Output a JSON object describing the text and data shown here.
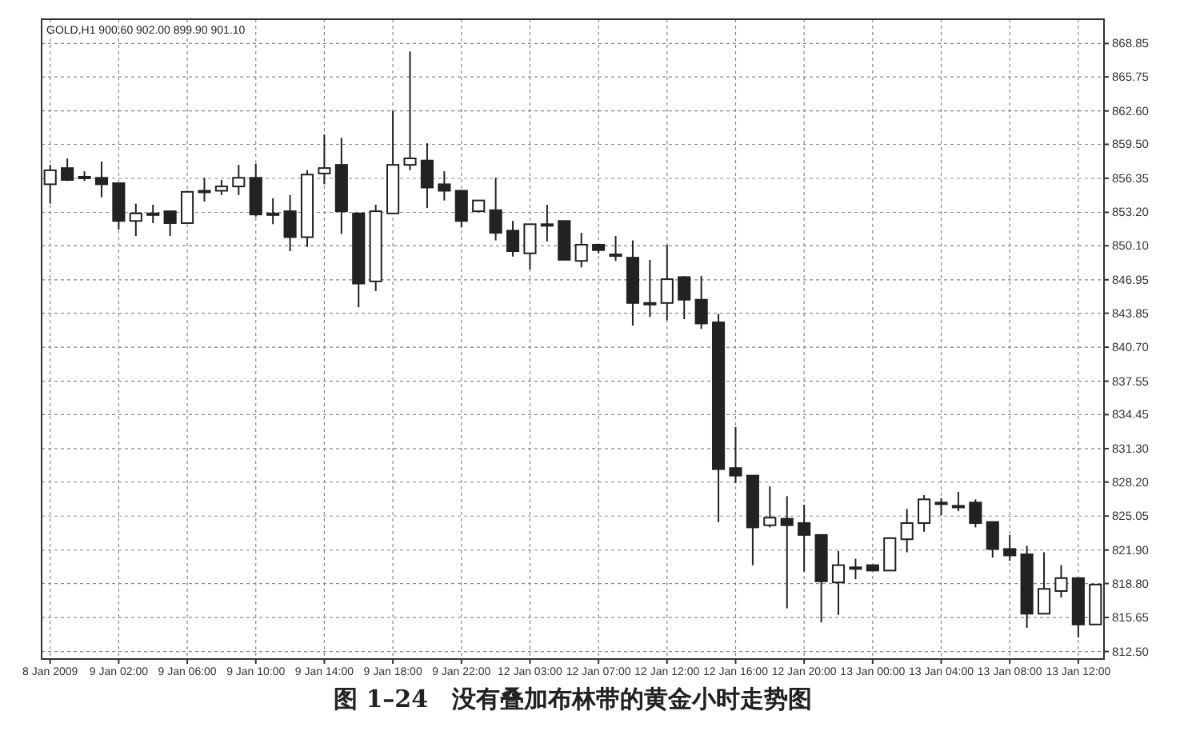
{
  "chart_data": {
    "type": "candlestick",
    "title": "图 1–24　没有叠加布林带的黄金小时走势图",
    "annotations": [
      "GOLD,H1  900.60 902.00 899.90 901.10"
    ],
    "categories": [
      "8 Jan 2009",
      null,
      null,
      null,
      "9 Jan 02:00",
      null,
      null,
      null,
      "9 Jan 06:00",
      null,
      null,
      null,
      "9 Jan 10:00",
      null,
      null,
      null,
      "9 Jan 14:00",
      null,
      null,
      null,
      "9 Jan 18:00",
      null,
      null,
      null,
      "9 Jan 22:00",
      null,
      null,
      null,
      "12 Jan 03:00",
      null,
      null,
      null,
      "12 Jan 07:00",
      null,
      null,
      null,
      "12 Jan 12:00",
      null,
      null,
      null,
      "12 Jan 16:00",
      null,
      null,
      null,
      "12 Jan 20:00",
      null,
      null,
      null,
      "13 Jan 00:00",
      null,
      null,
      null,
      "13 Jan 04:00",
      null,
      null,
      null,
      "13 Jan 08:00",
      null,
      null,
      null,
      "13 Jan 12:00",
      null
    ],
    "ohlc": [
      [
        855.8,
        857.6,
        854.0,
        857.1
      ],
      [
        857.3,
        858.2,
        856.1,
        856.2
      ],
      [
        856.5,
        857.0,
        856.1,
        856.5
      ],
      [
        856.4,
        857.9,
        854.6,
        855.8
      ],
      [
        855.9,
        855.9,
        851.6,
        852.4
      ],
      [
        852.4,
        854.0,
        851.0,
        853.1
      ],
      [
        853.1,
        853.9,
        852.2,
        853.1
      ],
      [
        853.3,
        853.3,
        851.0,
        852.2
      ],
      [
        852.2,
        855.2,
        852.2,
        855.1
      ],
      [
        855.2,
        856.4,
        854.2,
        855.2
      ],
      [
        855.2,
        856.2,
        854.8,
        855.6
      ],
      [
        855.6,
        857.6,
        854.8,
        856.4
      ],
      [
        856.4,
        857.7,
        852.8,
        853.0
      ],
      [
        853.1,
        854.5,
        852.1,
        853.1
      ],
      [
        853.3,
        854.8,
        849.6,
        850.9
      ],
      [
        850.9,
        857.1,
        850.0,
        856.7
      ],
      [
        856.8,
        860.4,
        855.8,
        857.3
      ],
      [
        857.6,
        860.1,
        851.2,
        853.3
      ],
      [
        853.1,
        853.1,
        844.4,
        846.6
      ],
      [
        846.8,
        853.9,
        845.9,
        853.3
      ],
      [
        853.1,
        862.6,
        853.1,
        857.6
      ],
      [
        857.6,
        868.1,
        857.1,
        858.2
      ],
      [
        858.0,
        859.6,
        853.6,
        855.5
      ],
      [
        855.8,
        857.0,
        854.3,
        855.2
      ],
      [
        855.2,
        855.2,
        851.8,
        852.4
      ],
      [
        853.3,
        854.3,
        853.3,
        854.3
      ],
      [
        853.4,
        856.4,
        850.6,
        851.3
      ],
      [
        851.5,
        852.4,
        849.1,
        849.6
      ],
      [
        849.4,
        852.1,
        847.9,
        852.1
      ],
      [
        852.1,
        853.9,
        850.5,
        852.1
      ],
      [
        852.4,
        852.4,
        848.8,
        848.8
      ],
      [
        848.7,
        851.3,
        848.1,
        850.2
      ],
      [
        850.2,
        850.2,
        849.4,
        849.7
      ],
      [
        849.3,
        851.0,
        848.7,
        849.3
      ],
      [
        849.0,
        850.6,
        842.7,
        844.8
      ],
      [
        844.8,
        848.8,
        843.5,
        844.8
      ],
      [
        844.8,
        850.2,
        843.2,
        847.0
      ],
      [
        847.2,
        847.3,
        843.3,
        845.1
      ],
      [
        845.1,
        847.3,
        842.4,
        842.9
      ],
      [
        843.0,
        843.8,
        824.5,
        829.4
      ],
      [
        829.5,
        833.3,
        828.1,
        828.8
      ],
      [
        828.8,
        828.8,
        820.5,
        824.0
      ],
      [
        824.2,
        827.8,
        824.0,
        824.9
      ],
      [
        824.8,
        826.9,
        816.5,
        824.2
      ],
      [
        824.4,
        826.1,
        819.9,
        823.3
      ],
      [
        823.3,
        823.3,
        815.2,
        819.0
      ],
      [
        818.9,
        821.8,
        815.9,
        820.5
      ],
      [
        820.3,
        821.1,
        819.2,
        820.3
      ],
      [
        820.5,
        820.5,
        820.0,
        820.0
      ],
      [
        820.0,
        823.0,
        820.0,
        823.0
      ],
      [
        822.9,
        825.7,
        821.7,
        824.4
      ],
      [
        824.4,
        827.0,
        823.6,
        826.6
      ],
      [
        826.3,
        826.7,
        825.1,
        826.3
      ],
      [
        826.0,
        827.3,
        825.5,
        826.0
      ],
      [
        826.3,
        826.6,
        824.0,
        824.4
      ],
      [
        824.5,
        824.5,
        821.2,
        822.0
      ],
      [
        822.0,
        823.3,
        820.9,
        821.4
      ],
      [
        821.5,
        822.3,
        814.7,
        816.0
      ],
      [
        816.0,
        821.7,
        816.0,
        818.3
      ],
      [
        818.1,
        820.5,
        817.5,
        819.3
      ],
      [
        819.3,
        819.3,
        813.8,
        815.0
      ],
      [
        815.0,
        818.7,
        815.0,
        818.7
      ]
    ],
    "ylim": [
      811.8,
      871.1
    ],
    "yticks": [
      {
        "value": 868.85,
        "label": "868.85"
      },
      {
        "value": 865.75,
        "label": "865.75"
      },
      {
        "value": 862.6,
        "label": "862.60"
      },
      {
        "value": 859.5,
        "label": "859.50"
      },
      {
        "value": 856.35,
        "label": "856.35"
      },
      {
        "value": 853.2,
        "label": "853.20"
      },
      {
        "value": 850.1,
        "label": "850.10"
      },
      {
        "value": 846.95,
        "label": "846.95"
      },
      {
        "value": 843.85,
        "label": "843.85"
      },
      {
        "value": 840.7,
        "label": "840.70"
      },
      {
        "value": 837.55,
        "label": "837.55"
      },
      {
        "value": 834.45,
        "label": "834.45"
      },
      {
        "value": 831.3,
        "label": "831.30"
      },
      {
        "value": 828.2,
        "label": "828.20"
      },
      {
        "value": 825.05,
        "label": "825.05"
      },
      {
        "value": 821.9,
        "label": "821.90"
      },
      {
        "value": 818.8,
        "label": "818.80"
      },
      {
        "value": 815.65,
        "label": "815.65"
      },
      {
        "value": 812.5,
        "label": "812.50"
      }
    ],
    "grid": true
  }
}
